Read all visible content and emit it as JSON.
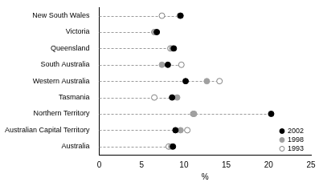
{
  "chart_data": {
    "type": "dot",
    "orientation": "horizontal",
    "categories": [
      "New South Wales",
      "Victoria",
      "Queensland",
      "South Australia",
      "Western Australia",
      "Tasmania",
      "Northern Territory",
      "Australian Capital Territory",
      "Australia"
    ],
    "series": [
      {
        "name": "2002",
        "color": "#000000",
        "marker": "filled circle",
        "values": [
          9.6,
          6.8,
          8.8,
          8.1,
          10.2,
          8.6,
          20.3,
          9.0,
          8.7
        ]
      },
      {
        "name": "1998",
        "color": "#a0a0a0",
        "marker": "filled circle",
        "values": [
          9.5,
          6.6,
          8.6,
          7.4,
          12.7,
          9.2,
          11.2,
          9.6,
          8.5
        ]
      },
      {
        "name": "1993",
        "color": "#808080",
        "marker": "open circle",
        "values": [
          7.4,
          6.5,
          8.4,
          9.7,
          14.2,
          6.5,
          11.1,
          10.4,
          8.2
        ]
      }
    ],
    "xlabel": "%",
    "xlim": [
      0,
      25
    ],
    "xticks": [
      0,
      5,
      10,
      15,
      20,
      25
    ],
    "grid": false,
    "legend": "lower right"
  }
}
